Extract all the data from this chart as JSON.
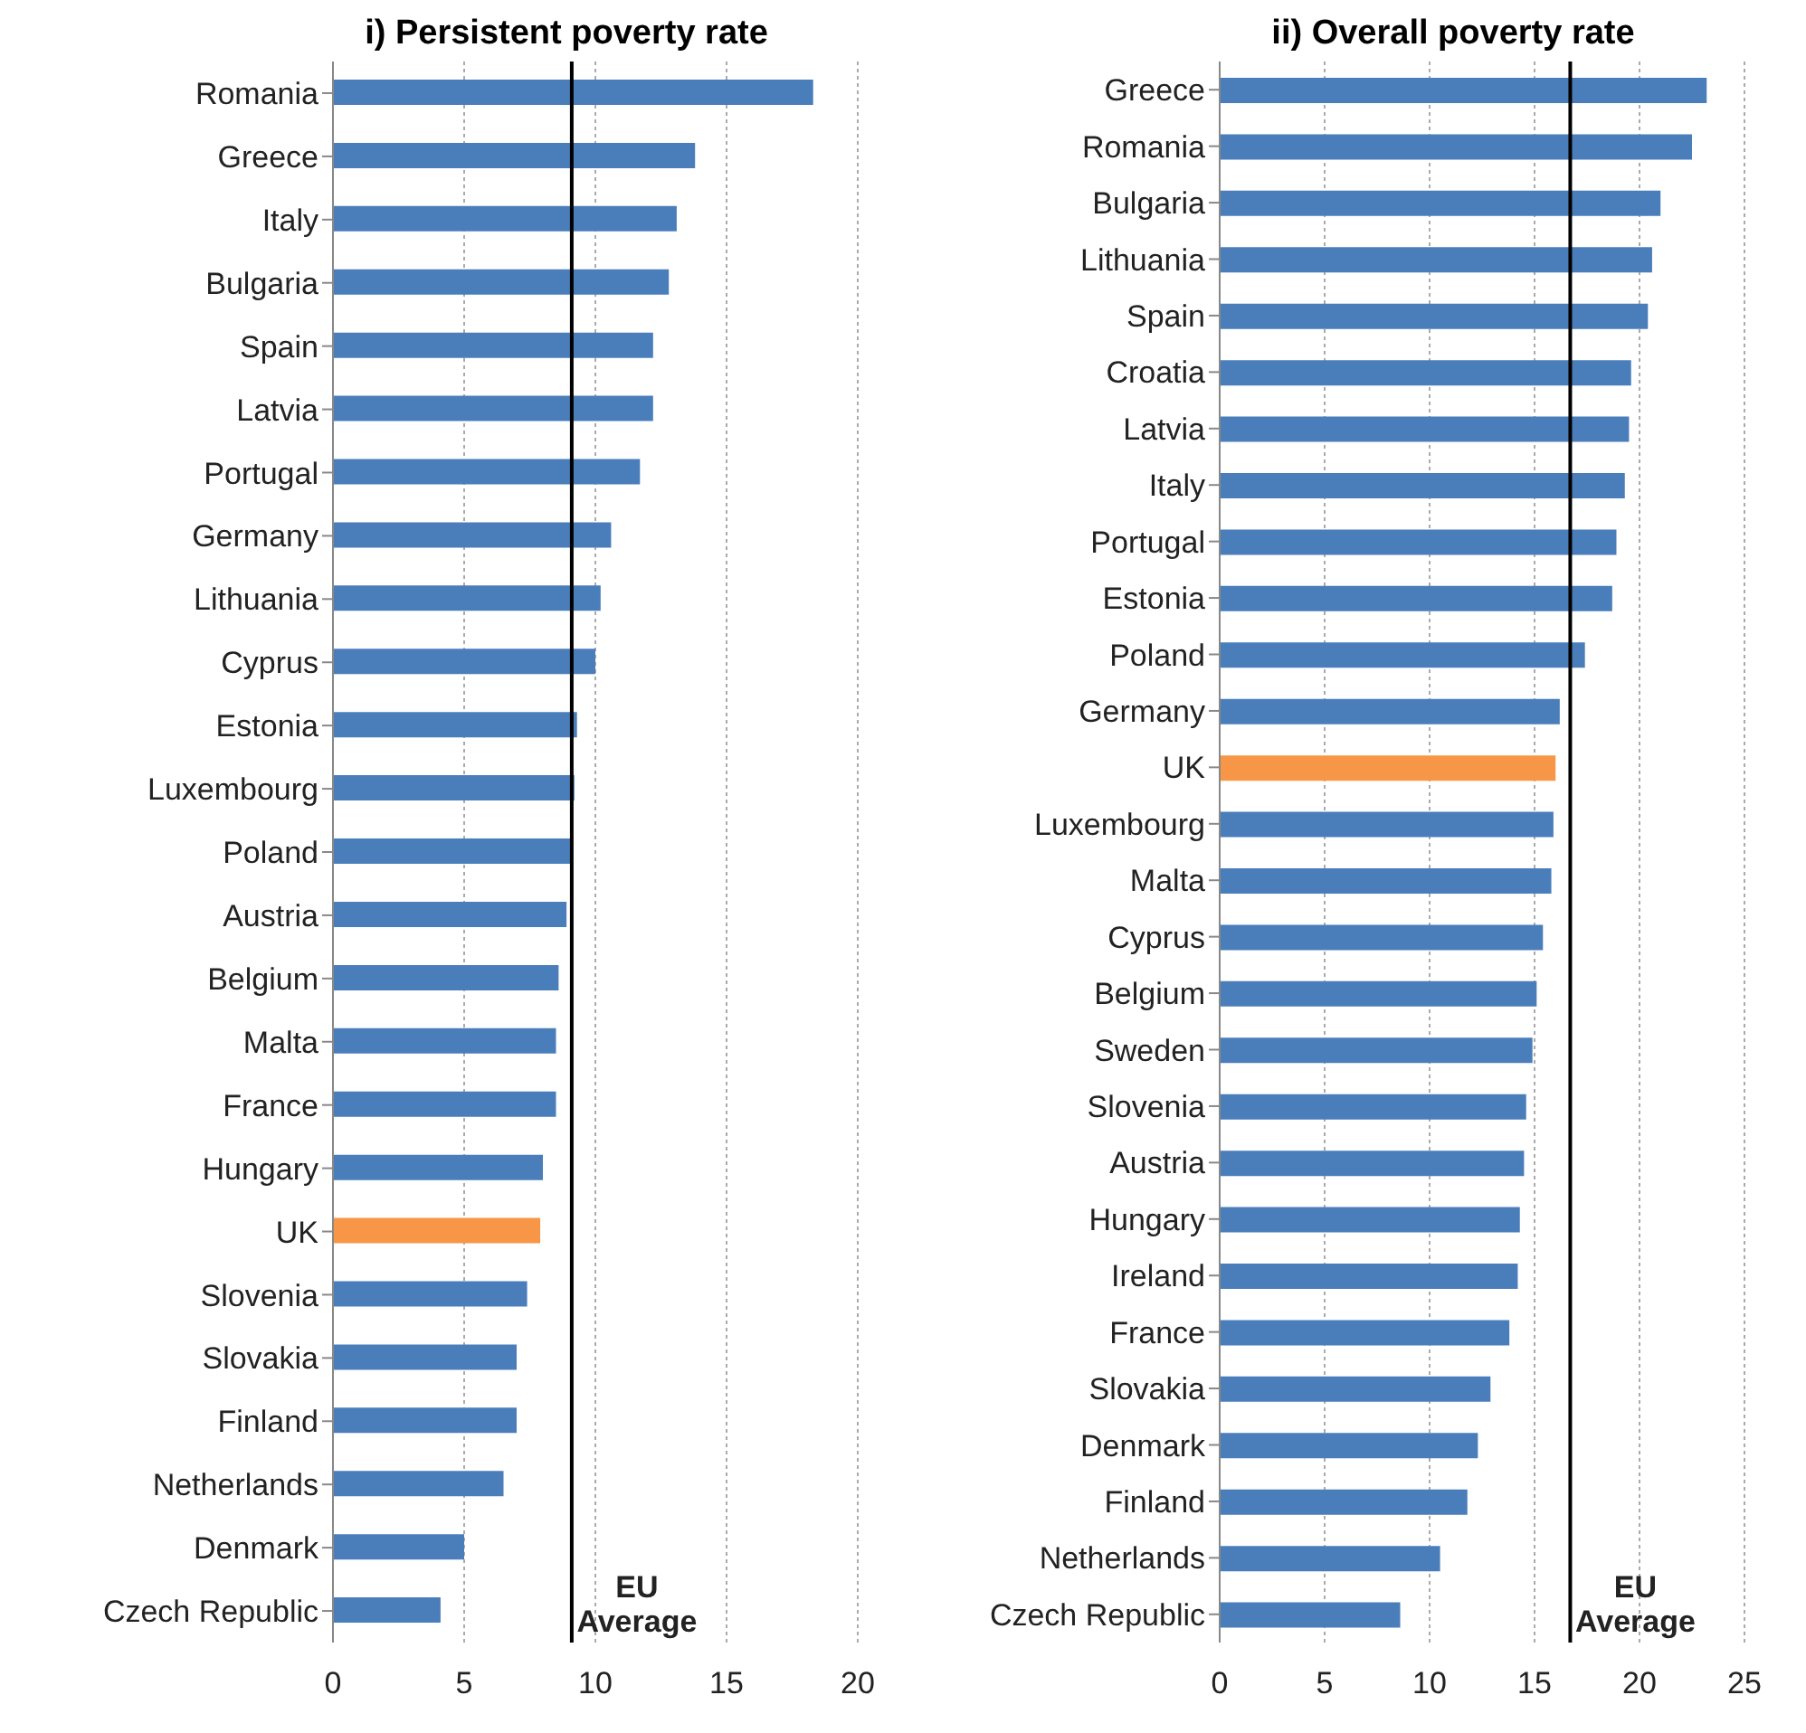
{
  "chart_data": [
    {
      "type": "bar",
      "orientation": "horizontal",
      "title": "i) Persistent poverty rate",
      "categories": [
        "Romania",
        "Greece",
        "Italy",
        "Bulgaria",
        "Spain",
        "Latvia",
        "Portugal",
        "Germany",
        "Lithuania",
        "Cyprus",
        "Estonia",
        "Luxembourg",
        "Poland",
        "Austria",
        "Belgium",
        "Malta",
        "France",
        "Hungary",
        "UK",
        "Slovenia",
        "Slovakia",
        "Finland",
        "Netherlands",
        "Denmark",
        "Czech Republic"
      ],
      "values": [
        18.3,
        13.8,
        13.1,
        12.8,
        12.2,
        12.2,
        11.7,
        10.6,
        10.2,
        10.0,
        9.3,
        9.2,
        9.1,
        8.9,
        8.6,
        8.5,
        8.5,
        8.0,
        7.9,
        7.4,
        7.0,
        7.0,
        6.5,
        5.0,
        4.1
      ],
      "colors": [
        "#4a7ebb",
        "#4a7ebb",
        "#4a7ebb",
        "#4a7ebb",
        "#4a7ebb",
        "#4a7ebb",
        "#4a7ebb",
        "#4a7ebb",
        "#4a7ebb",
        "#4a7ebb",
        "#4a7ebb",
        "#4a7ebb",
        "#4a7ebb",
        "#4a7ebb",
        "#4a7ebb",
        "#4a7ebb",
        "#4a7ebb",
        "#4a7ebb",
        "#f79646",
        "#4a7ebb",
        "#4a7ebb",
        "#4a7ebb",
        "#4a7ebb",
        "#4a7ebb",
        "#4a7ebb"
      ],
      "xlim": [
        0,
        20
      ],
      "xticks": [
        0,
        5,
        10,
        15,
        20
      ],
      "grid": "x",
      "ref_lines": [
        {
          "axis": "x",
          "value": 9.1,
          "label": "EU Average",
          "color": "#000000"
        }
      ]
    },
    {
      "type": "bar",
      "orientation": "horizontal",
      "title": "ii) Overall poverty rate",
      "categories": [
        "Greece",
        "Romania",
        "Bulgaria",
        "Lithuania",
        "Spain",
        "Croatia",
        "Latvia",
        "Italy",
        "Portugal",
        "Estonia",
        "Poland",
        "Germany",
        "UK",
        "Luxembourg",
        "Malta",
        "Cyprus",
        "Belgium",
        "Sweden",
        "Slovenia",
        "Austria",
        "Hungary",
        "Ireland",
        "France",
        "Slovakia",
        "Denmark",
        "Finland",
        "Netherlands",
        "Czech Republic"
      ],
      "values": [
        23.2,
        22.5,
        21.0,
        20.6,
        20.4,
        19.6,
        19.5,
        19.3,
        18.9,
        18.7,
        17.4,
        16.2,
        16.0,
        15.9,
        15.8,
        15.4,
        15.1,
        14.9,
        14.6,
        14.5,
        14.3,
        14.2,
        13.8,
        12.9,
        12.3,
        11.8,
        10.5,
        8.6
      ],
      "colors": [
        "#4a7ebb",
        "#4a7ebb",
        "#4a7ebb",
        "#4a7ebb",
        "#4a7ebb",
        "#4a7ebb",
        "#4a7ebb",
        "#4a7ebb",
        "#4a7ebb",
        "#4a7ebb",
        "#4a7ebb",
        "#4a7ebb",
        "#f79646",
        "#4a7ebb",
        "#4a7ebb",
        "#4a7ebb",
        "#4a7ebb",
        "#4a7ebb",
        "#4a7ebb",
        "#4a7ebb",
        "#4a7ebb",
        "#4a7ebb",
        "#4a7ebb",
        "#4a7ebb",
        "#4a7ebb",
        "#4a7ebb",
        "#4a7ebb",
        "#4a7ebb"
      ],
      "xlim": [
        0,
        25
      ],
      "xticks": [
        0,
        5,
        10,
        15,
        20,
        25
      ],
      "grid": "x",
      "ref_lines": [
        {
          "axis": "x",
          "value": 16.7,
          "label": "EU Average",
          "color": "#000000"
        }
      ]
    }
  ]
}
